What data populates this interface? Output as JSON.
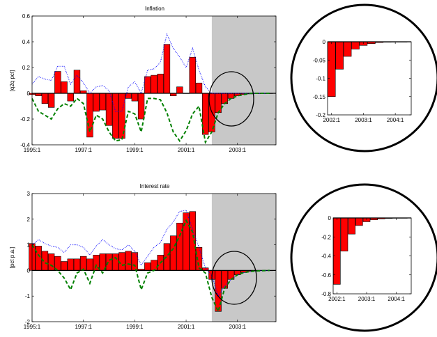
{
  "colors": {
    "bar": "#ff0000",
    "dotted": "#0000ff",
    "dashed": "#008000",
    "shade": "#c8c8c8"
  },
  "chart_data": [
    {
      "type": "bar",
      "title": "Inflation",
      "ylabel": "[q2q pct]",
      "xlim": [
        1995.0,
        2004.5
      ],
      "ylim": [
        -0.4,
        0.6
      ],
      "yticks": [
        "-0.4",
        "-0.2",
        "0",
        "0.2",
        "0.4",
        "0.6"
      ],
      "ytick_values": [
        -0.4,
        -0.2,
        0,
        0.2,
        0.4,
        0.6
      ],
      "xticks": [
        "1995:1",
        "1997:1",
        "1999:1",
        "2001:1",
        "2003:1"
      ],
      "xtick_values": [
        1995,
        1997,
        1999,
        2001,
        2003
      ],
      "shade_from": 2002.0,
      "x": [
        1995.0,
        1995.25,
        1995.5,
        1995.75,
        1996.0,
        1996.25,
        1996.5,
        1996.75,
        1997.0,
        1997.25,
        1997.5,
        1997.75,
        1998.0,
        1998.25,
        1998.5,
        1998.75,
        1999.0,
        1999.25,
        1999.5,
        1999.75,
        2000.0,
        2000.25,
        2000.5,
        2000.75,
        2001.0,
        2001.25,
        2001.5,
        2001.75,
        2002.0,
        2002.25,
        2002.5,
        2002.75,
        2003.0,
        2003.25,
        2003.5,
        2003.75,
        2004.0,
        2004.25
      ],
      "values": [
        -0.01,
        -0.02,
        -0.08,
        -0.11,
        0.17,
        0.09,
        -0.06,
        0.18,
        0.02,
        -0.34,
        -0.14,
        -0.13,
        -0.25,
        -0.35,
        -0.35,
        -0.04,
        -0.06,
        -0.2,
        0.13,
        0.14,
        0.15,
        0.38,
        -0.02,
        0.05,
        0.0,
        0.28,
        0.08,
        -0.32,
        -0.3,
        -0.15,
        -0.08,
        -0.04,
        -0.02,
        -0.01,
        -0.005,
        -0.002,
        -0.001,
        -0.001
      ],
      "series": [
        {
          "style": "dotted",
          "values": [
            0.07,
            0.13,
            0.11,
            0.1,
            0.21,
            0.21,
            0.07,
            0.14,
            0.08,
            0.0,
            0.05,
            0.06,
            0.02,
            -0.14,
            -0.14,
            0.05,
            0.09,
            0.0,
            0.18,
            0.19,
            0.24,
            0.46,
            0.35,
            0.28,
            0.2,
            0.35,
            0.18,
            0.05,
            0.0,
            0.0,
            0.0,
            0.0,
            0.0,
            0.0,
            0.0,
            0.0,
            0.0,
            0.0
          ]
        },
        {
          "style": "dashed",
          "values": [
            -0.04,
            -0.14,
            -0.17,
            -0.2,
            -0.12,
            -0.08,
            -0.1,
            -0.04,
            -0.08,
            -0.3,
            -0.17,
            -0.2,
            -0.3,
            -0.37,
            -0.36,
            -0.14,
            -0.16,
            -0.3,
            -0.04,
            -0.04,
            -0.05,
            -0.15,
            -0.3,
            -0.37,
            -0.29,
            -0.16,
            -0.1,
            -0.38,
            -0.3,
            -0.15,
            -0.08,
            -0.04,
            -0.02,
            -0.01,
            0.0,
            0.0,
            0.0,
            0.0
          ]
        }
      ]
    },
    {
      "type": "bar",
      "title": "",
      "ylabel": "",
      "xlim": [
        2001.875,
        2004.5
      ],
      "ylim": [
        -0.2,
        0.0
      ],
      "yticks": [
        "-0.2",
        "-0.15",
        "-0.1",
        "-0.05",
        "0"
      ],
      "ytick_values": [
        -0.2,
        -0.15,
        -0.1,
        -0.05,
        0
      ],
      "xticks": [
        "2002:1",
        "2003:1",
        "2004:1"
      ],
      "xtick_values": [
        2002,
        2003,
        2004
      ],
      "x": [
        2002.0,
        2002.25,
        2002.5,
        2002.75,
        2003.0,
        2003.25,
        2003.5,
        2003.75,
        2004.0,
        2004.25
      ],
      "values": [
        -0.15,
        -0.075,
        -0.04,
        -0.02,
        -0.01,
        -0.005,
        -0.002,
        -0.001,
        -0.0005,
        -0.0003
      ]
    },
    {
      "type": "bar",
      "title": "Interest rate",
      "ylabel": "[pct p.a.]",
      "xlim": [
        1995.0,
        2004.5
      ],
      "ylim": [
        -2,
        3
      ],
      "yticks": [
        "-2",
        "-1",
        "0",
        "1",
        "2",
        "3"
      ],
      "ytick_values": [
        -2,
        -1,
        0,
        1,
        2,
        3
      ],
      "xticks": [
        "1995:1",
        "1997:1",
        "1999:1",
        "2001:1",
        "2003:1"
      ],
      "xtick_values": [
        1995,
        1997,
        1999,
        2001,
        2003
      ],
      "shade_from": 2002.0,
      "x": [
        1995.0,
        1995.25,
        1995.5,
        1995.75,
        1996.0,
        1996.25,
        1996.5,
        1996.75,
        1997.0,
        1997.25,
        1997.5,
        1997.75,
        1998.0,
        1998.25,
        1998.5,
        1998.75,
        1999.0,
        1999.25,
        1999.5,
        1999.75,
        2000.0,
        2000.25,
        2000.5,
        2000.75,
        2001.0,
        2001.25,
        2001.5,
        2001.75,
        2002.0,
        2002.25,
        2002.5,
        2002.75,
        2003.0,
        2003.25,
        2003.5,
        2003.75,
        2004.0,
        2004.25
      ],
      "values": [
        1.05,
        0.95,
        0.75,
        0.65,
        0.55,
        0.35,
        0.45,
        0.45,
        0.55,
        0.45,
        0.6,
        0.65,
        0.65,
        0.65,
        0.7,
        0.75,
        0.7,
        0.05,
        0.3,
        0.4,
        0.6,
        1.05,
        1.35,
        1.85,
        2.25,
        2.3,
        0.9,
        0.1,
        -0.35,
        -1.6,
        -0.7,
        -0.35,
        -0.17,
        -0.08,
        -0.04,
        -0.02,
        -0.01,
        -0.005
      ],
      "series": [
        {
          "style": "dotted",
          "values": [
            1.0,
            1.2,
            1.05,
            0.95,
            0.9,
            0.7,
            1.0,
            1.0,
            0.9,
            0.6,
            0.95,
            1.2,
            1.0,
            0.85,
            0.8,
            1.0,
            0.75,
            0.2,
            0.55,
            0.9,
            1.1,
            1.6,
            1.9,
            2.3,
            2.35,
            1.6,
            0.9,
            0.1,
            -0.2,
            -1.0,
            -0.6,
            -0.35,
            -0.17,
            -0.08,
            -0.04,
            -0.02,
            -0.01,
            0.0
          ]
        },
        {
          "style": "dashed",
          "values": [
            1.0,
            0.6,
            0.3,
            0.2,
            0.0,
            -0.3,
            -0.75,
            -0.1,
            0.05,
            -0.5,
            0.2,
            -0.1,
            0.4,
            0.5,
            0.2,
            0.25,
            0.2,
            -0.75,
            -0.1,
            0.0,
            0.3,
            0.55,
            0.85,
            1.35,
            1.95,
            1.5,
            0.1,
            -0.1,
            -1.05,
            -1.6,
            -0.7,
            -0.35,
            -0.17,
            -0.08,
            -0.04,
            -0.02,
            -0.01,
            0.0
          ]
        }
      ]
    },
    {
      "type": "bar",
      "title": "",
      "ylabel": "",
      "xlim": [
        2001.875,
        2004.5
      ],
      "ylim": [
        -0.8,
        0.0
      ],
      "yticks": [
        "-0.8",
        "-0.6",
        "-0.4",
        "-0.2",
        "0"
      ],
      "ytick_values": [
        -0.8,
        -0.6,
        -0.4,
        -0.2,
        0
      ],
      "xticks": [
        "2002:1",
        "2003:1",
        "2004:1"
      ],
      "xtick_values": [
        2002,
        2003,
        2004
      ],
      "x": [
        2002.0,
        2002.25,
        2002.5,
        2002.75,
        2003.0,
        2003.25,
        2003.5,
        2003.75,
        2004.0,
        2004.25
      ],
      "values": [
        -0.7,
        -0.35,
        -0.17,
        -0.08,
        -0.04,
        -0.02,
        -0.01,
        -0.005,
        -0.003,
        -0.001
      ]
    }
  ]
}
